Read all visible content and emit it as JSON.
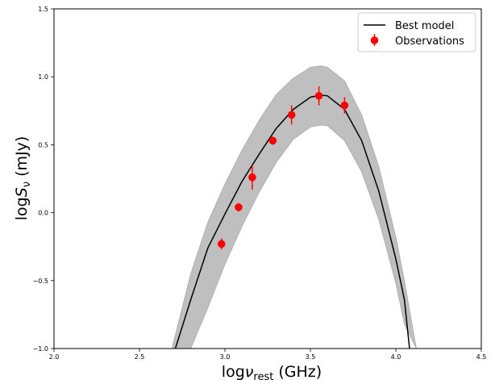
{
  "chart_data": {
    "type": "line",
    "title": "",
    "xlabel": {
      "prefix": "log",
      "symbol": "ν",
      "subscript": "rest",
      "suffix": " (GHz)"
    },
    "ylabel": {
      "prefix": "log",
      "symbol": "S",
      "subscript": "ν",
      "suffix": " (mJy)"
    },
    "xlim": [
      2.0,
      4.5
    ],
    "ylim": [
      -1.0,
      1.5
    ],
    "xticks": [
      2.0,
      2.5,
      3.0,
      3.5,
      4.0,
      4.5
    ],
    "xtick_labels": [
      "2.0",
      "2.5",
      "3.0",
      "3.5",
      "4.0",
      "4.5"
    ],
    "yticks": [
      -1.0,
      -0.5,
      0.0,
      0.5,
      1.0,
      1.5
    ],
    "ytick_labels": [
      "−1.0",
      "−0.5",
      "0.0",
      "0.5",
      "1.0",
      "1.5"
    ],
    "grid": false,
    "legend_position": "top-right",
    "series": [
      {
        "name": "Best model",
        "kind": "line",
        "color": "#000000",
        "x": [
          2.71,
          2.8,
          2.9,
          3.0,
          3.1,
          3.2,
          3.3,
          3.4,
          3.5,
          3.56,
          3.6,
          3.7,
          3.8,
          3.9,
          4.0,
          4.05,
          4.08
        ],
        "y": [
          -1.0,
          -0.64,
          -0.26,
          -0.01,
          0.23,
          0.43,
          0.62,
          0.76,
          0.85,
          0.865,
          0.86,
          0.76,
          0.53,
          0.16,
          -0.34,
          -0.64,
          -1.0
        ]
      },
      {
        "name": "Observations",
        "kind": "errorbar",
        "color": "#ff0000",
        "x": [
          2.98,
          3.08,
          3.16,
          3.28,
          3.39,
          3.55,
          3.7
        ],
        "y": [
          -0.23,
          0.04,
          0.26,
          0.53,
          0.72,
          0.86,
          0.79
        ],
        "yerr": [
          0.04,
          0.03,
          0.09,
          0.03,
          0.07,
          0.07,
          0.06
        ]
      }
    ],
    "band": {
      "color": "#bfbfbf",
      "x": [
        2.69,
        2.8,
        2.9,
        3.0,
        3.1,
        3.2,
        3.3,
        3.4,
        3.5,
        3.56,
        3.6,
        3.7,
        3.8,
        3.9,
        4.0,
        4.05,
        4.12
      ],
      "y_upper": [
        -1.0,
        -0.45,
        -0.07,
        0.21,
        0.46,
        0.68,
        0.87,
        0.99,
        1.07,
        1.08,
        1.07,
        0.97,
        0.72,
        0.34,
        -0.18,
        -0.5,
        -1.0
      ],
      "y_lower": [
        -1.0,
        -1.0,
        -0.7,
        -0.38,
        -0.1,
        0.15,
        0.37,
        0.54,
        0.63,
        0.645,
        0.64,
        0.53,
        0.3,
        -0.05,
        -0.52,
        -0.82,
        -1.0
      ]
    }
  }
}
